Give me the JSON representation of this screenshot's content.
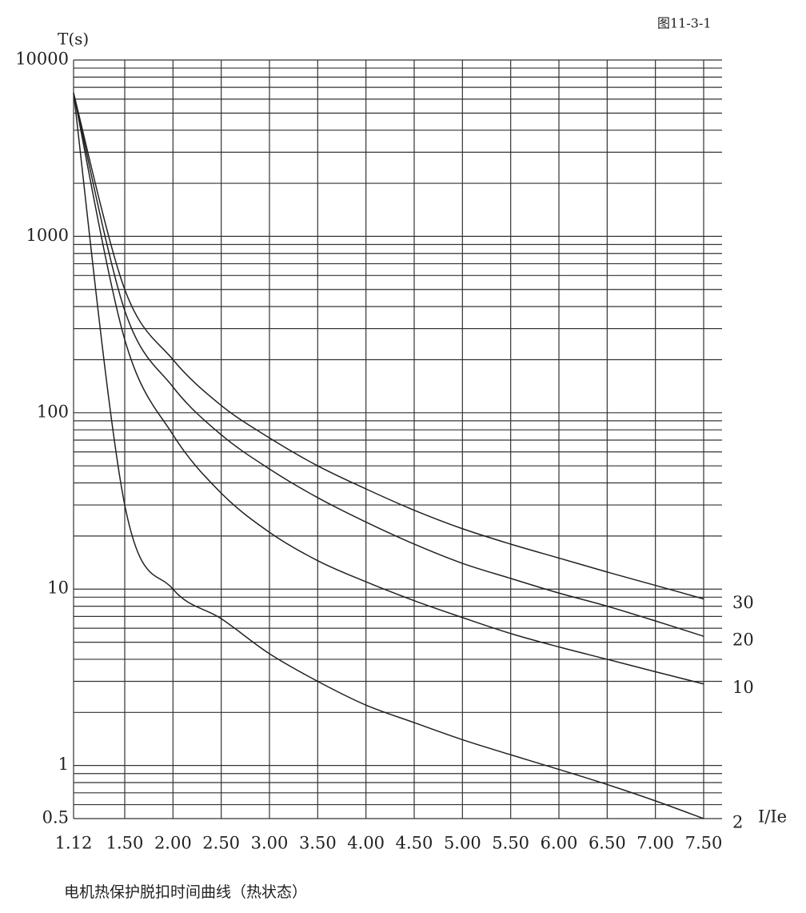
{
  "chart_data": {
    "type": "line",
    "figure_label": "图11-3-1",
    "y_axis_label": "T(s)",
    "x_axis_label": "I/Ie",
    "caption": "电机热保护脱扣时间曲线（热状态）",
    "categories": [
      "1.12",
      "1.50",
      "2.00",
      "2.50",
      "3.00",
      "3.50",
      "4.00",
      "4.50",
      "5.00",
      "5.50",
      "6.00",
      "6.50",
      "7.00",
      "7.50"
    ],
    "series": [
      {
        "name": "30",
        "color": "#222222",
        "values": [
          6500,
          500,
          200,
          110,
          72,
          50,
          37,
          28,
          22,
          18,
          15,
          12.5,
          10.5,
          8.8
        ]
      },
      {
        "name": "20",
        "color": "#222222",
        "values": [
          6500,
          380,
          140,
          75,
          48,
          33,
          24,
          18,
          14,
          11.5,
          9.5,
          8,
          6.6,
          5.4
        ]
      },
      {
        "name": "10",
        "color": "#222222",
        "values": [
          6500,
          260,
          75,
          35,
          21,
          14.5,
          11,
          8.6,
          6.9,
          5.6,
          4.7,
          4,
          3.4,
          2.9
        ]
      },
      {
        "name": "2",
        "color": "#222222",
        "values": [
          6500,
          30,
          10,
          6.8,
          4.3,
          3.0,
          2.2,
          1.75,
          1.4,
          1.15,
          0.95,
          0.78,
          0.63,
          0.5
        ]
      }
    ],
    "log_y": true,
    "ylim": [
      0.5,
      10000
    ],
    "yticks": [
      0.5,
      1,
      10,
      100,
      1000,
      10000
    ],
    "yticks_minor": [
      0.6,
      0.7,
      0.8,
      0.9,
      2,
      3,
      4,
      5,
      6,
      7,
      8,
      9,
      20,
      30,
      40,
      50,
      60,
      70,
      80,
      90,
      200,
      300,
      400,
      500,
      600,
      700,
      800,
      900,
      2000,
      3000,
      4000,
      5000,
      6000,
      7000,
      8000,
      9000
    ],
    "grid": true
  }
}
